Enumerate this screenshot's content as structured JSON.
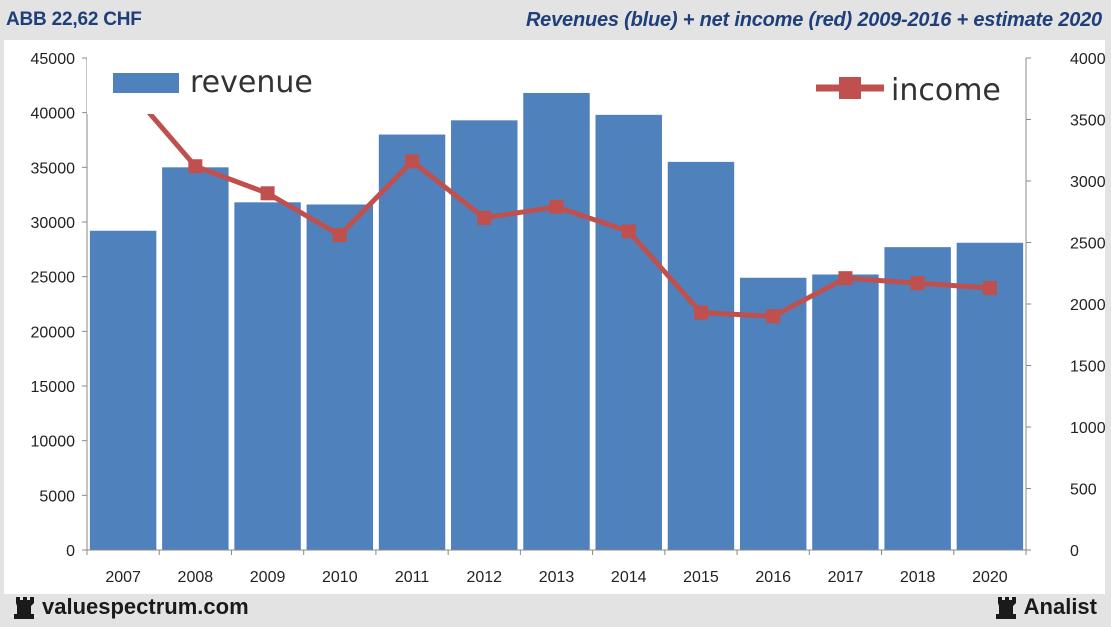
{
  "header": {
    "left": "ABB 22,62 CHF",
    "right": "Revenues (blue) + net income (red) 2009-2016 + estimate 2020"
  },
  "footer": {
    "left": "valuespectrum.com",
    "right": "Analist"
  },
  "colors": {
    "revenue": "#4f81bd",
    "income": "#c0504d"
  },
  "chart_data": {
    "type": "bar+line",
    "title": "Revenues (blue) + net income (red) 2009-2016 + estimate 2020",
    "categories": [
      "2007",
      "2008",
      "2009",
      "2010",
      "2011",
      "2012",
      "2013",
      "2014",
      "2015",
      "2016",
      "2017",
      "2018",
      "2020"
    ],
    "series": [
      {
        "name": "revenue",
        "type": "bar",
        "axis": "left",
        "values": [
          29200,
          35000,
          31800,
          31600,
          38000,
          39300,
          41800,
          39800,
          35500,
          24900,
          25200,
          27700,
          28100
        ]
      },
      {
        "name": "income",
        "type": "line",
        "axis": "right",
        "values": [
          3800,
          3120,
          2900,
          2560,
          3160,
          2700,
          2790,
          2590,
          1930,
          1900,
          2210,
          2170,
          2130
        ]
      }
    ],
    "y_left": {
      "min": 0,
      "max": 45000,
      "step": 5000,
      "tick_labels": [
        "0",
        "5000",
        "10000",
        "15000",
        "20000",
        "25000",
        "30000",
        "35000",
        "40000",
        "45000"
      ]
    },
    "y_right": {
      "min": 0,
      "max": 4000,
      "step": 500,
      "tick_labels": [
        "0",
        "500",
        "1000",
        "1500",
        "2000",
        "2500",
        "3000",
        "3500",
        "4000"
      ]
    },
    "legend": {
      "revenue_label": "revenue",
      "income_label": "income",
      "revenue_position": "top-left",
      "income_position": "top-right"
    }
  }
}
